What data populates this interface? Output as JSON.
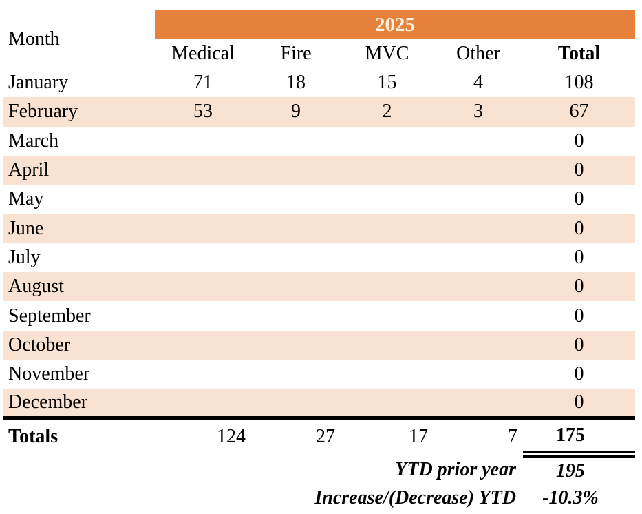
{
  "colors": {
    "banner_orange": "#E8813B",
    "banner_text": "#FCF3E2",
    "row_peach": "#F9E2D2",
    "text": "#000000"
  },
  "header": {
    "year": "2025",
    "month_col": "Month",
    "columns": [
      "Medical",
      "Fire",
      "MVC",
      "Other",
      "Total"
    ]
  },
  "table": {
    "rows": [
      {
        "month": "January",
        "values": [
          "71",
          "18",
          "15",
          "4",
          "108"
        ]
      },
      {
        "month": "February",
        "values": [
          "53",
          "9",
          "2",
          "3",
          "67"
        ]
      },
      {
        "month": "March",
        "values": [
          "",
          "",
          "",
          "",
          "0"
        ]
      },
      {
        "month": "April",
        "values": [
          "",
          "",
          "",
          "",
          "0"
        ]
      },
      {
        "month": "May",
        "values": [
          "",
          "",
          "",
          "",
          "0"
        ]
      },
      {
        "month": "June",
        "values": [
          "",
          "",
          "",
          "",
          "0"
        ]
      },
      {
        "month": "July",
        "values": [
          "",
          "",
          "",
          "",
          "0"
        ]
      },
      {
        "month": "August",
        "values": [
          "",
          "",
          "",
          "",
          "0"
        ]
      },
      {
        "month": "September",
        "values": [
          "",
          "",
          "",
          "",
          "0"
        ]
      },
      {
        "month": "October",
        "values": [
          "",
          "",
          "",
          "",
          "0"
        ]
      },
      {
        "month": "November",
        "values": [
          "",
          "",
          "",
          "",
          "0"
        ]
      },
      {
        "month": "December",
        "values": [
          "",
          "",
          "",
          "",
          "0"
        ]
      }
    ],
    "totals": {
      "label": "Totals",
      "medical": "124",
      "fire": "27",
      "mvc": "17",
      "other": "7",
      "total": "175"
    }
  },
  "footer": {
    "ytd_prior_label": "YTD prior year",
    "ytd_prior_value": "195",
    "increase_label": "Increase/(Decrease) YTD",
    "increase_value": "-10.3%"
  },
  "chart_data": {
    "type": "table",
    "title": "2025",
    "columns": [
      "Month",
      "Medical",
      "Fire",
      "MVC",
      "Other",
      "Total"
    ],
    "rows": [
      [
        "January",
        71,
        18,
        15,
        4,
        108
      ],
      [
        "February",
        53,
        9,
        2,
        3,
        67
      ],
      [
        "March",
        null,
        null,
        null,
        null,
        0
      ],
      [
        "April",
        null,
        null,
        null,
        null,
        0
      ],
      [
        "May",
        null,
        null,
        null,
        null,
        0
      ],
      [
        "June",
        null,
        null,
        null,
        null,
        0
      ],
      [
        "July",
        null,
        null,
        null,
        null,
        0
      ],
      [
        "August",
        null,
        null,
        null,
        null,
        0
      ],
      [
        "September",
        null,
        null,
        null,
        null,
        0
      ],
      [
        "October",
        null,
        null,
        null,
        null,
        0
      ],
      [
        "November",
        null,
        null,
        null,
        null,
        0
      ],
      [
        "December",
        null,
        null,
        null,
        null,
        0
      ]
    ],
    "totals_row": [
      "Totals",
      124,
      27,
      17,
      7,
      175
    ],
    "ytd_prior_year": 195,
    "increase_decrease_ytd": "-10.3%",
    "layout_hints": {
      "banner_color": "#E8813B",
      "alternating_row_color": "#F9E2D2",
      "grand_total_double_underline": true
    }
  }
}
